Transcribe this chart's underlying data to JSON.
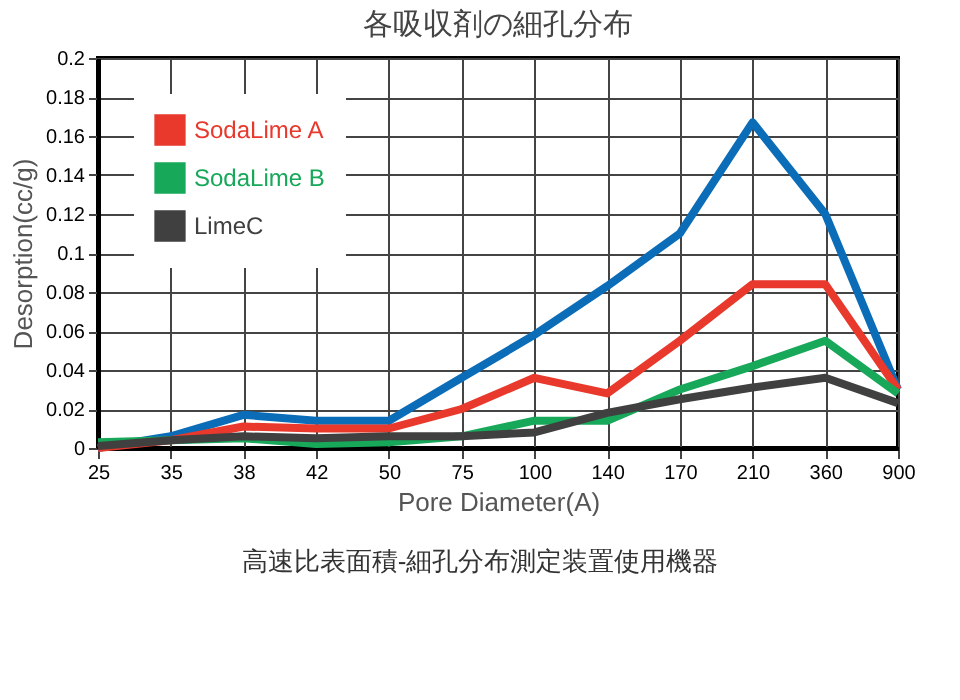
{
  "chart_data": {
    "type": "line",
    "title": "各吸収剤の細孔分布",
    "xlabel": "Pore Diameter(A)",
    "ylabel": "Desorption(cc/g)",
    "categories": [
      "25",
      "35",
      "38",
      "42",
      "50",
      "75",
      "100",
      "140",
      "170",
      "210",
      "360",
      "900"
    ],
    "series": [
      {
        "color": "#0b6cb8",
        "values": [
          0,
          0.006,
          0.017,
          0.014,
          0.014,
          0.036,
          0.058,
          0.083,
          0.11,
          0.167,
          0.12,
          0.03
        ]
      },
      {
        "name": "SodaLime A",
        "color": "#e8392c",
        "values": [
          0,
          0.004,
          0.011,
          0.01,
          0.01,
          0.02,
          0.036,
          0.028,
          0.055,
          0.084,
          0.084,
          0.03
        ]
      },
      {
        "name": "SodaLime B",
        "color": "#17a85a",
        "values": [
          0.003,
          0.004,
          0.005,
          0.002,
          0.003,
          0.006,
          0.014,
          0.014,
          0.03,
          0.042,
          0.055,
          0.028
        ]
      },
      {
        "name": "LimeC",
        "color": "#404040",
        "values": [
          0.001,
          0.004,
          0.006,
          0.005,
          0.006,
          0.006,
          0.008,
          0.018,
          0.025,
          0.031,
          0.036,
          0.023
        ]
      }
    ],
    "ylim": [
      0,
      0.2
    ],
    "yticks": [
      0,
      0.02,
      0.04,
      0.06,
      0.08,
      0.1,
      0.12,
      0.14,
      0.16,
      0.18,
      0.2
    ],
    "grid": true,
    "legend": "top left",
    "marker": "none",
    "annotations": [
      "高速比表面積-細孔分布測定装置使用機器"
    ]
  }
}
